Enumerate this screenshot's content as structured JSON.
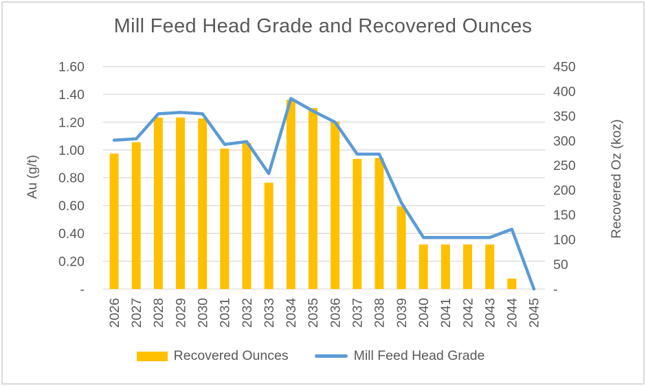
{
  "chart_data": {
    "type": "combo",
    "title": "Mill Feed Head Grade and Recovered Ounces",
    "categories": [
      "2026",
      "2027",
      "2028",
      "2029",
      "2030",
      "2031",
      "2032",
      "2033",
      "2034",
      "2035",
      "2036",
      "2037",
      "2038",
      "2039",
      "2040",
      "2041",
      "2042",
      "2043",
      "2044",
      "2045"
    ],
    "series": [
      {
        "name": "Recovered Ounces",
        "type": "bar",
        "axis": "right",
        "unit": "koz",
        "color": "#FFC000",
        "values": [
          274,
          297,
          347,
          347,
          345,
          284,
          295,
          215,
          383,
          366,
          339,
          263,
          265,
          167,
          90,
          90,
          90,
          90,
          21,
          0
        ]
      },
      {
        "name": "Mill Feed Head Grade",
        "type": "line",
        "axis": "left",
        "unit": "g/t",
        "color": "#5B9BD5",
        "values": [
          1.07,
          1.08,
          1.26,
          1.27,
          1.26,
          1.04,
          1.06,
          0.83,
          1.37,
          1.28,
          1.2,
          0.97,
          0.97,
          0.62,
          0.37,
          0.37,
          0.37,
          0.37,
          0.43,
          0.0
        ]
      }
    ],
    "left_axis": {
      "title": "Au (g/t)",
      "min": 0,
      "max": 1.6,
      "ticks": [
        {
          "label": "1.60",
          "value": 1.6
        },
        {
          "label": "1.40",
          "value": 1.4
        },
        {
          "label": "1.20",
          "value": 1.2
        },
        {
          "label": "1.00",
          "value": 1.0
        },
        {
          "label": "0.80",
          "value": 0.8
        },
        {
          "label": "0.60",
          "value": 0.6
        },
        {
          "label": "0.40",
          "value": 0.4
        },
        {
          "label": "0.20",
          "value": 0.2
        },
        {
          "label": "-",
          "value": 0
        }
      ]
    },
    "right_axis": {
      "title": "Recovered Oz (koz)",
      "min": 0,
      "max": 450,
      "ticks": [
        {
          "label": "450",
          "value": 450
        },
        {
          "label": "400",
          "value": 400
        },
        {
          "label": "350",
          "value": 350
        },
        {
          "label": "300",
          "value": 300
        },
        {
          "label": "250",
          "value": 250
        },
        {
          "label": "200",
          "value": 200
        },
        {
          "label": "150",
          "value": 150
        },
        {
          "label": "100",
          "value": 100
        },
        {
          "label": "50",
          "value": 50
        },
        {
          "label": "-",
          "value": 0
        }
      ]
    },
    "grid": true,
    "legend_position": "bottom",
    "text_color": "#595959",
    "gridline_color": "#D9D9D9",
    "frame_color": "#D9D9D9"
  }
}
